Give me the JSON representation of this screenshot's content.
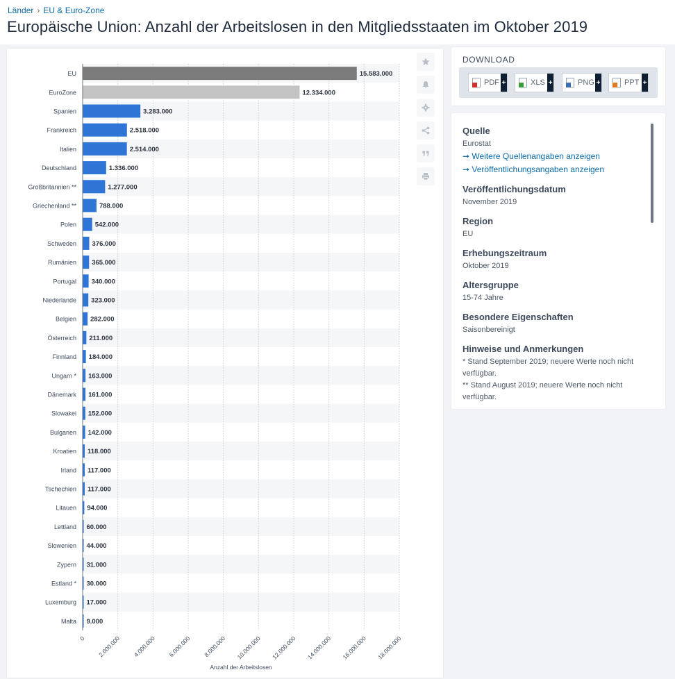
{
  "breadcrumb": {
    "items": [
      "Länder",
      "EU & Euro-Zone"
    ],
    "separator": "›"
  },
  "page_title": "Europäische Union: Anzahl der Arbeitslosen in den Mitgliedsstaaten im Oktober 2019",
  "toolbar": {
    "icons": [
      "star-icon",
      "bell-icon",
      "gear-icon",
      "share-icon",
      "quote-icon",
      "print-icon"
    ]
  },
  "download": {
    "title": "DOWNLOAD",
    "buttons": [
      {
        "label": "PDF",
        "plus": "+",
        "color": "#d0312d"
      },
      {
        "label": "XLS",
        "plus": "+",
        "color": "#3a9d3a"
      },
      {
        "label": "PNG",
        "plus": "+",
        "color": "#3b6fb6"
      },
      {
        "label": "PPT",
        "plus": "+",
        "color": "#e07a24"
      }
    ]
  },
  "info": {
    "quelle_label": "Quelle",
    "quelle_value": "Eurostat",
    "link_sources": "➞ Weitere Quellenangaben anzeigen",
    "link_publication": "➞ Veröffentlichungsangaben anzeigen",
    "date_label": "Veröffentlichungsdatum",
    "date_value": "November 2019",
    "region_label": "Region",
    "region_value": "EU",
    "period_label": "Erhebungszeitraum",
    "period_value": "Oktober 2019",
    "age_label": "Altersgruppe",
    "age_value": "15-74 Jahre",
    "special_label": "Besondere Eigenschaften",
    "special_value": "Saisonbereinigt",
    "notes_label": "Hinweise und Anmerkungen",
    "note1": "* Stand September 2019; neuere Werte noch nicht verfügbar.",
    "note2": "** Stand August 2019; neuere Werte noch nicht verfügbar."
  },
  "chart_data": {
    "type": "bar",
    "orientation": "horizontal",
    "categories": [
      "EU",
      "EuroZone",
      "Spanien",
      "Frankreich",
      "Italien",
      "Deutschland",
      "Großbritannien **",
      "Griechenland **",
      "Polen",
      "Schweden",
      "Rumänien",
      "Portugal",
      "Niederlande",
      "Belgien",
      "Österreich",
      "Finnland",
      "Ungarn *",
      "Dänemark",
      "Slowakei",
      "Bulgarien",
      "Kroatien",
      "Irland",
      "Tschechien",
      "Litauen",
      "Lettland",
      "Slowenien",
      "Zypern",
      "Estland *",
      "Luxemburg",
      "Malta"
    ],
    "values": [
      15583000,
      12334000,
      3283000,
      2518000,
      2514000,
      1336000,
      1277000,
      788000,
      542000,
      376000,
      365000,
      340000,
      323000,
      282000,
      211000,
      184000,
      163000,
      161000,
      152000,
      142000,
      118000,
      117000,
      117000,
      94000,
      60000,
      44000,
      31000,
      30000,
      17000,
      9000
    ],
    "value_labels": [
      "15.583.000",
      "12.334.000",
      "3.283.000",
      "2.518.000",
      "2.514.000",
      "1.336.000",
      "1.277.000",
      "788.000",
      "542.000",
      "376.000",
      "365.000",
      "340.000",
      "323.000",
      "282.000",
      "211.000",
      "184.000",
      "163.000",
      "161.000",
      "152.000",
      "142.000",
      "118.000",
      "117.000",
      "117.000",
      "94.000",
      "60.000",
      "44.000",
      "31.000",
      "30.000",
      "17.000",
      "9.000"
    ],
    "bar_colors": [
      "#7b7b7b",
      "#c3c3c3",
      "#2e75d6"
    ],
    "xlim": [
      0,
      18000000
    ],
    "x_ticks": [
      0,
      2000000,
      4000000,
      6000000,
      8000000,
      10000000,
      12000000,
      14000000,
      16000000,
      18000000
    ],
    "x_tick_labels": [
      "0",
      "2.000.000",
      "4.000.000",
      "6.000.000",
      "8.000.000",
      "10.000.000",
      "12.000.000",
      "14.000.000",
      "16.000.000",
      "18.000.000"
    ],
    "xlabel": "Anzahl der Arbeitslosen",
    "grid": "vertical dotted",
    "row_striping": true
  }
}
